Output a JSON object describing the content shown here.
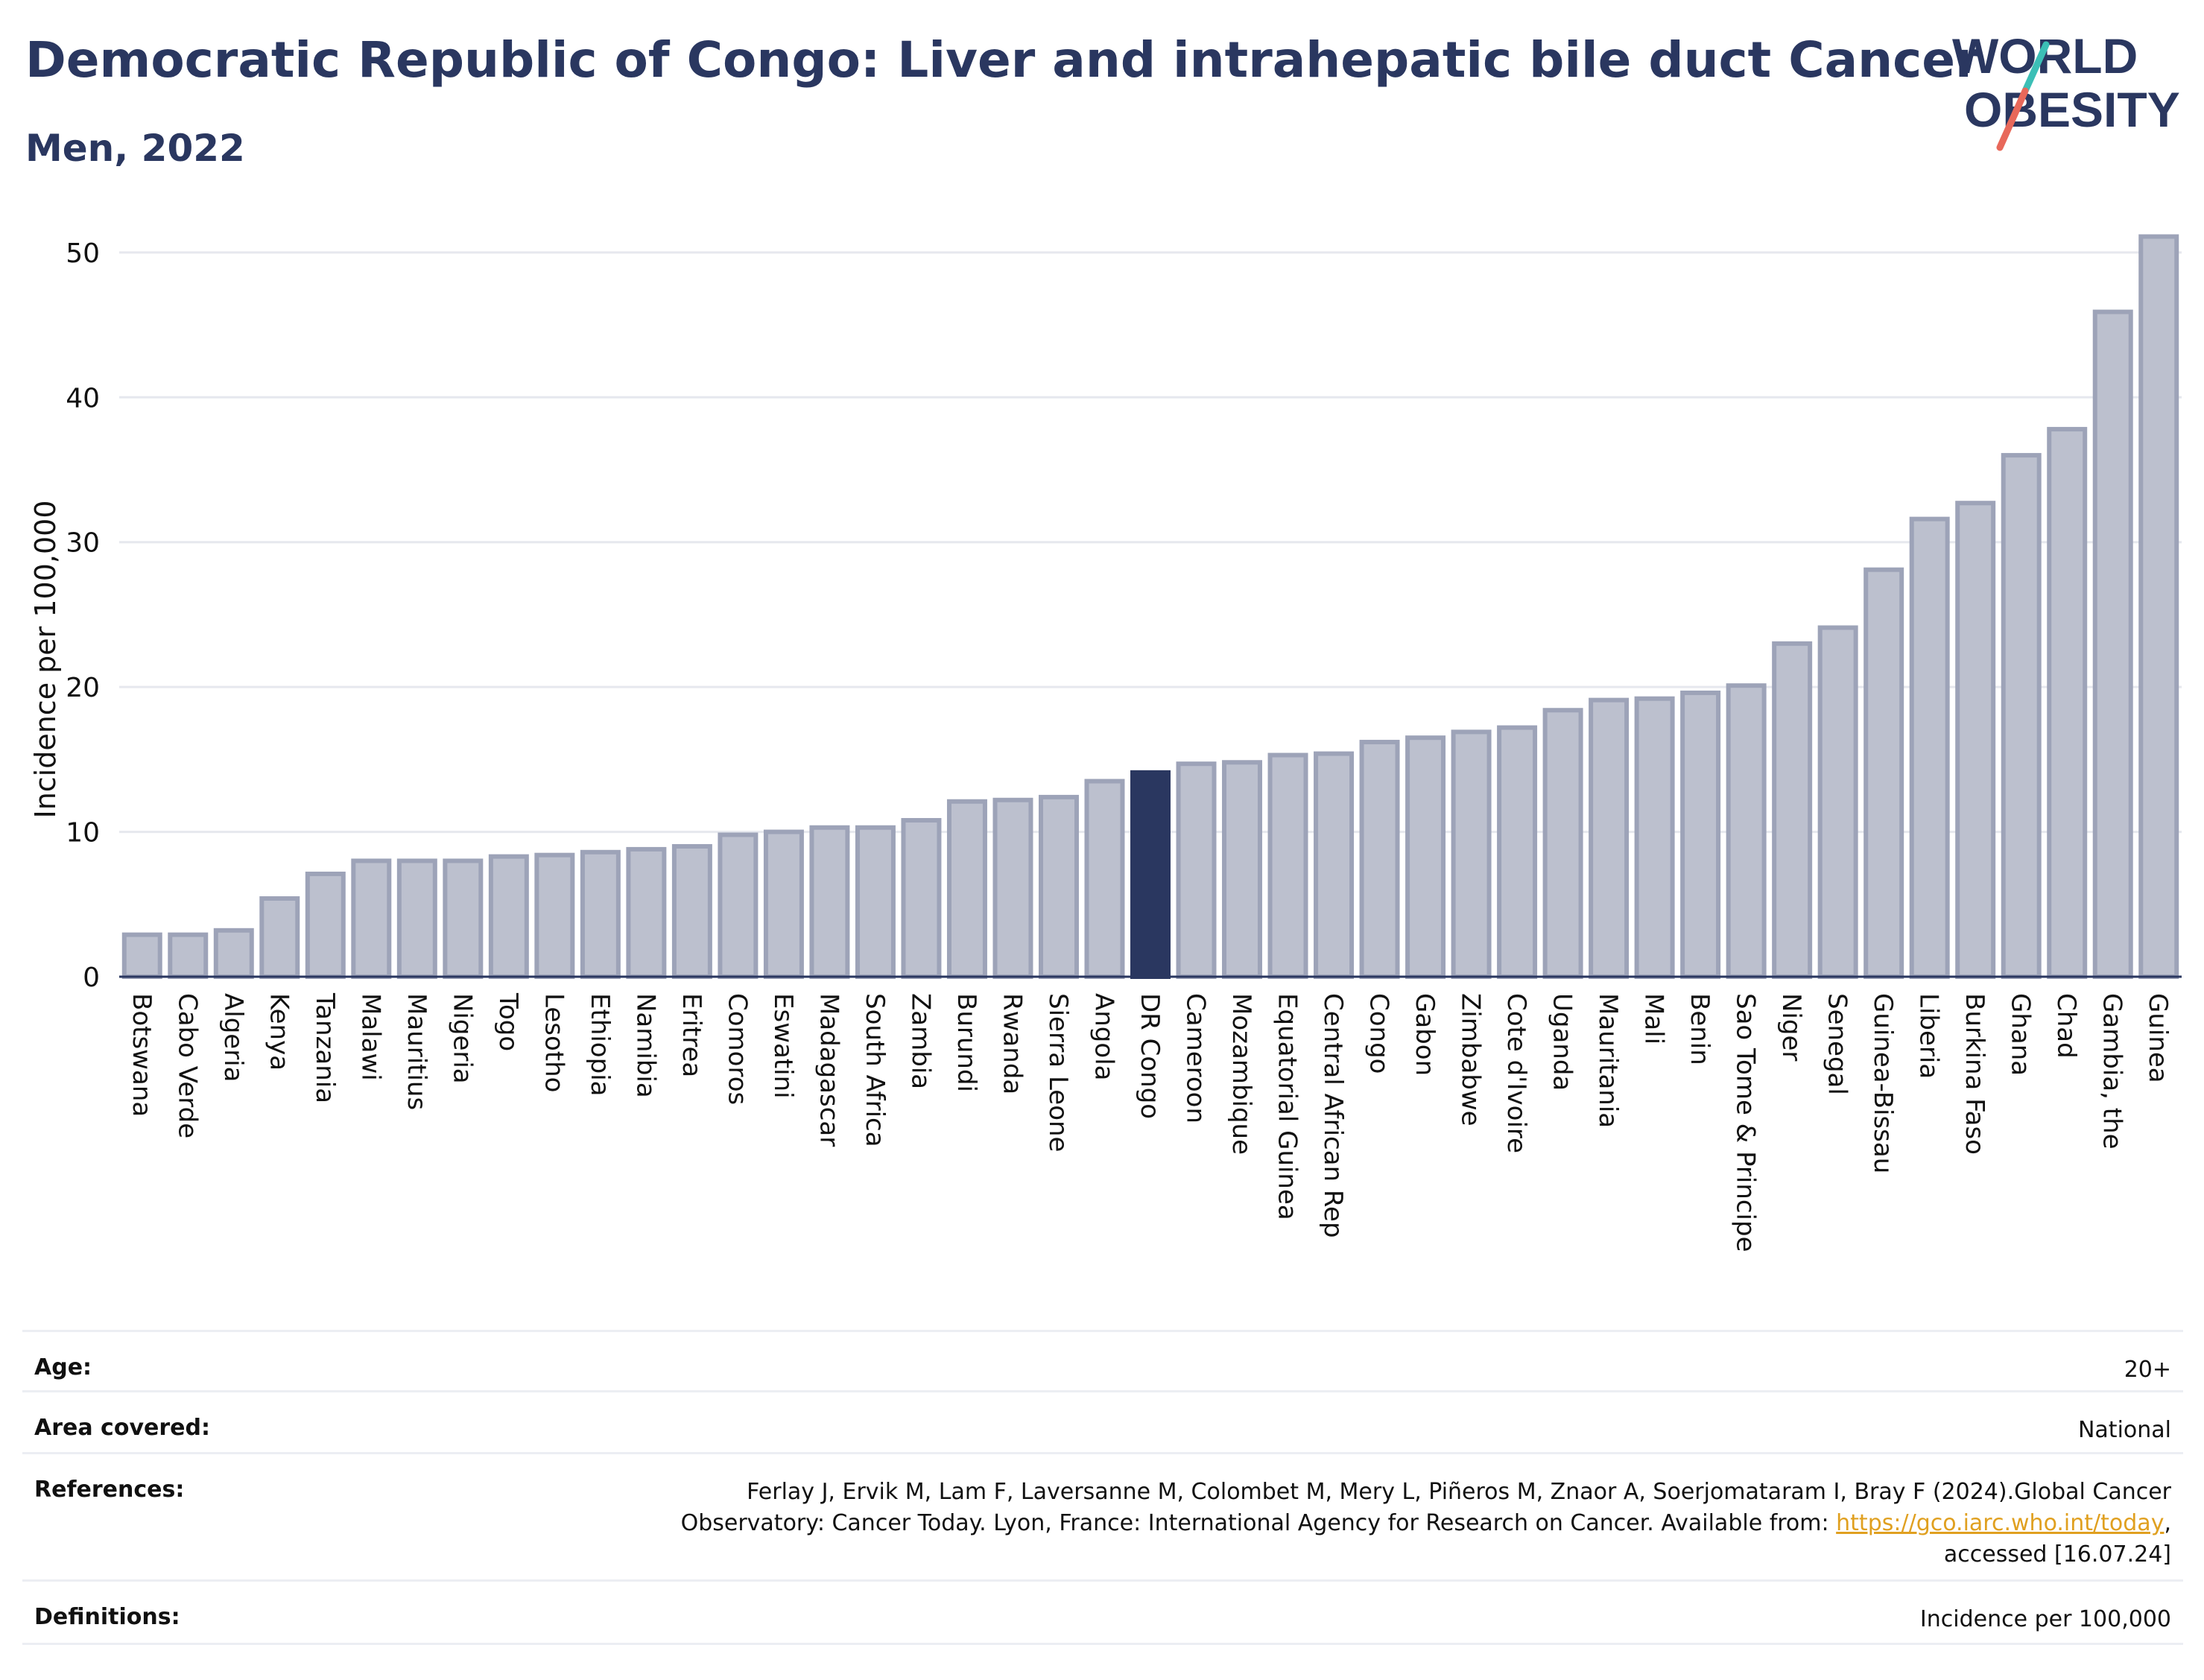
{
  "header": {
    "title": "Democratic Republic of Congo: Liver and intrahepatic bile duct Cancer",
    "subtitle": "Men, 2022"
  },
  "logo": {
    "line1": "WORLD",
    "line2": "OBESITY",
    "colors": {
      "text": "#2a3760",
      "slash_top": "#3cbfb6",
      "slash_bottom": "#e8685a"
    }
  },
  "chart_data": {
    "type": "bar",
    "ylabel": "Incidence per 100,000",
    "xlabel": "",
    "ylim": [
      0,
      52
    ],
    "yticks": [
      0,
      10,
      20,
      30,
      40,
      50
    ],
    "grid": true,
    "highlight_category": "DR Congo",
    "colors": {
      "bar": "#bcc0ce",
      "bar_edge": "#9da3b8",
      "highlight": "#2a3760"
    },
    "categories": [
      "Botswana",
      "Cabo Verde",
      "Algeria",
      "Kenya",
      "Tanzania",
      "Malawi",
      "Mauritius",
      "Nigeria",
      "Togo",
      "Lesotho",
      "Ethiopia",
      "Namibia",
      "Eritrea",
      "Comoros",
      "Eswatini",
      "Madagascar",
      "South Africa",
      "Zambia",
      "Burundi",
      "Rwanda",
      "Sierra Leone",
      "Angola",
      "DR Congo",
      "Cameroon",
      "Mozambique",
      "Equatorial Guinea",
      "Central African Rep",
      "Congo",
      "Gabon",
      "Zimbabwe",
      "Cote d'Ivoire",
      "Uganda",
      "Mauritania",
      "Mali",
      "Benin",
      "Sao Tome & Principe",
      "Niger",
      "Senegal",
      "Guinea-Bissau",
      "Liberia",
      "Burkina Faso",
      "Ghana",
      "Chad",
      "Gambia, the",
      "Guinea"
    ],
    "values": [
      2.9,
      2.9,
      3.2,
      5.4,
      7.1,
      8.0,
      8.0,
      8.0,
      8.3,
      8.4,
      8.6,
      8.8,
      9.0,
      9.8,
      10.0,
      10.3,
      10.3,
      10.8,
      12.1,
      12.2,
      12.4,
      13.5,
      14.1,
      14.7,
      14.8,
      15.3,
      15.4,
      16.2,
      16.5,
      16.9,
      17.2,
      18.4,
      19.1,
      19.2,
      19.6,
      20.1,
      23.0,
      24.1,
      28.1,
      31.6,
      32.7,
      36.0,
      37.8,
      45.9,
      51.1
    ]
  },
  "info": {
    "age_label": "Age:",
    "age_value": "20+",
    "area_label": "Area covered:",
    "area_value": "National",
    "references_label": "References:",
    "references_line1": "Ferlay J, Ervik M, Lam F, Laversanne M, Colombet M, Mery L, Piñeros M, Znaor A, Soerjomataram I, Bray F (2024).Global Cancer",
    "references_line2": "Observatory: Cancer Today. Lyon, France: International Agency for Research on Cancer. Available from:",
    "references_link": "https://gco.iarc.who.int/today",
    "references_line3": "accessed [16.07.24]",
    "definitions_label": "Definitions:",
    "definitions_value": "Incidence per 100,000"
  }
}
